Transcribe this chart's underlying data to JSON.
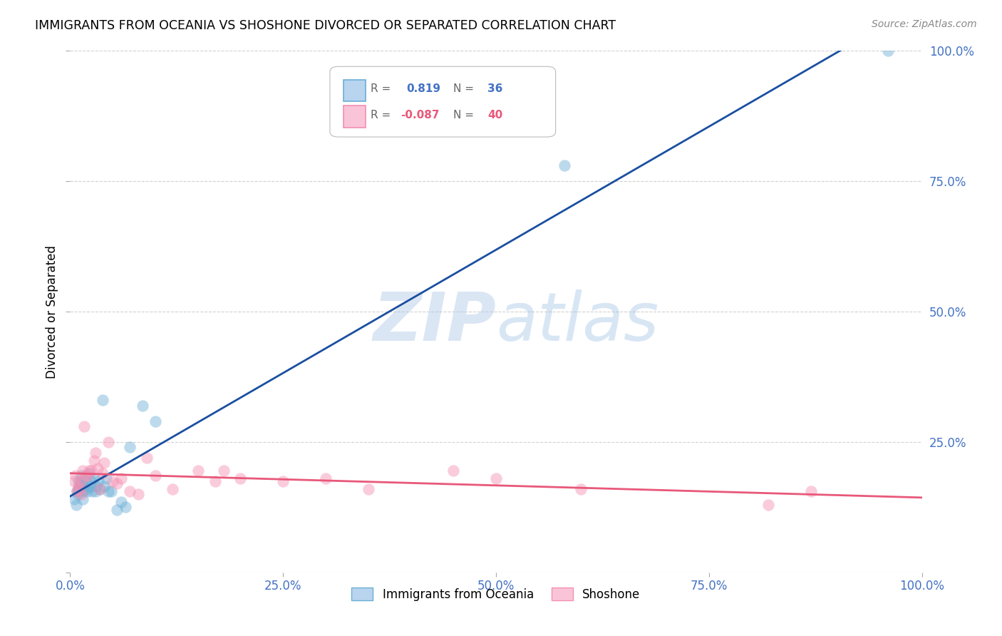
{
  "title": "IMMIGRANTS FROM OCEANIA VS SHOSHONE DIVORCED OR SEPARATED CORRELATION CHART",
  "source": "Source: ZipAtlas.com",
  "ylabel": "Divorced or Separated",
  "xlim": [
    0.0,
    1.0
  ],
  "ylim": [
    0.0,
    1.0
  ],
  "ytick_positions": [
    0.0,
    0.25,
    0.5,
    0.75,
    1.0
  ],
  "xtick_positions": [
    0.0,
    0.25,
    0.5,
    0.75,
    1.0
  ],
  "xtick_labels": [
    "0.0%",
    "25.0%",
    "50.0%",
    "75.0%",
    "100.0%"
  ],
  "ytick_labels": [
    "",
    "25.0%",
    "50.0%",
    "75.0%",
    "100.0%"
  ],
  "r_oceania": 0.819,
  "n_oceania": 36,
  "r_shoshone": -0.087,
  "n_shoshone": 40,
  "legend_label_1": "Immigrants from Oceania",
  "legend_label_2": "Shoshone",
  "color_oceania": "#6baed6",
  "color_shoshone": "#f48fb1",
  "line_color_oceania": "#1a4fa0",
  "line_color_shoshone": "#e8587a",
  "watermark_zip": "ZIP",
  "watermark_atlas": "atlas",
  "scatter_oceania_x": [
    0.005,
    0.007,
    0.008,
    0.009,
    0.01,
    0.01,
    0.012,
    0.013,
    0.015,
    0.015,
    0.016,
    0.018,
    0.019,
    0.02,
    0.022,
    0.023,
    0.025,
    0.026,
    0.028,
    0.03,
    0.031,
    0.033,
    0.035,
    0.038,
    0.04,
    0.042,
    0.045,
    0.048,
    0.055,
    0.06,
    0.065,
    0.07,
    0.085,
    0.1,
    0.58,
    0.96
  ],
  "scatter_oceania_y": [
    0.14,
    0.13,
    0.155,
    0.15,
    0.16,
    0.175,
    0.17,
    0.185,
    0.14,
    0.155,
    0.165,
    0.16,
    0.175,
    0.155,
    0.19,
    0.165,
    0.175,
    0.155,
    0.18,
    0.155,
    0.165,
    0.175,
    0.16,
    0.33,
    0.165,
    0.18,
    0.155,
    0.155,
    0.12,
    0.135,
    0.125,
    0.24,
    0.32,
    0.29,
    0.78,
    1.0
  ],
  "scatter_shoshone_x": [
    0.005,
    0.006,
    0.008,
    0.01,
    0.01,
    0.012,
    0.013,
    0.015,
    0.016,
    0.018,
    0.02,
    0.022,
    0.025,
    0.028,
    0.03,
    0.032,
    0.035,
    0.038,
    0.04,
    0.045,
    0.05,
    0.055,
    0.06,
    0.07,
    0.08,
    0.09,
    0.1,
    0.12,
    0.15,
    0.17,
    0.18,
    0.2,
    0.25,
    0.3,
    0.35,
    0.45,
    0.5,
    0.6,
    0.82,
    0.87
  ],
  "scatter_shoshone_y": [
    0.175,
    0.185,
    0.155,
    0.16,
    0.165,
    0.175,
    0.15,
    0.195,
    0.28,
    0.185,
    0.185,
    0.195,
    0.195,
    0.215,
    0.23,
    0.2,
    0.16,
    0.19,
    0.21,
    0.25,
    0.175,
    0.17,
    0.18,
    0.155,
    0.15,
    0.22,
    0.185,
    0.16,
    0.195,
    0.175,
    0.195,
    0.18,
    0.175,
    0.18,
    0.16,
    0.195,
    0.18,
    0.16,
    0.13,
    0.155
  ]
}
